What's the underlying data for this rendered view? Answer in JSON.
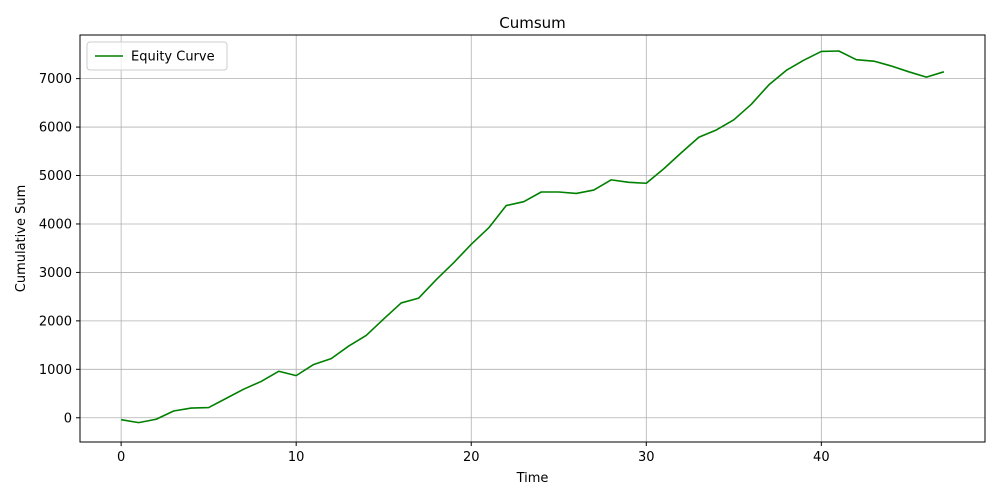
{
  "chart_data": {
    "type": "line",
    "title": "Cumsum",
    "xlabel": "Time",
    "ylabel": "Cumulative Sum",
    "xlim": [
      -2.35,
      49.35
    ],
    "ylim": [
      -500,
      7900
    ],
    "xticks": [
      0,
      10,
      20,
      30,
      40
    ],
    "yticks": [
      0,
      1000,
      2000,
      3000,
      4000,
      5000,
      6000,
      7000
    ],
    "grid": true,
    "legend_position": "top-left",
    "series": [
      {
        "name": "Equity Curve",
        "color": "#008000",
        "x": [
          0,
          1,
          2,
          3,
          4,
          5,
          6,
          7,
          8,
          9,
          10,
          11,
          12,
          13,
          14,
          15,
          16,
          17,
          18,
          19,
          20,
          21,
          22,
          23,
          24,
          25,
          26,
          27,
          28,
          29,
          30,
          31,
          32,
          33,
          34,
          35,
          36,
          37,
          38,
          39,
          40,
          41,
          42,
          43,
          44,
          45,
          46,
          47
        ],
        "y": [
          -40,
          -100,
          -30,
          140,
          200,
          210,
          400,
          590,
          750,
          960,
          870,
          1100,
          1220,
          1480,
          1700,
          2040,
          2370,
          2470,
          2850,
          3200,
          3580,
          3920,
          4380,
          4460,
          4660,
          4660,
          4630,
          4700,
          4910,
          4860,
          4840,
          5140,
          5470,
          5790,
          5940,
          6150,
          6470,
          6870,
          7170,
          7380,
          7560,
          7570,
          7390,
          7360,
          7260,
          7140,
          7030,
          7140
        ]
      }
    ]
  }
}
